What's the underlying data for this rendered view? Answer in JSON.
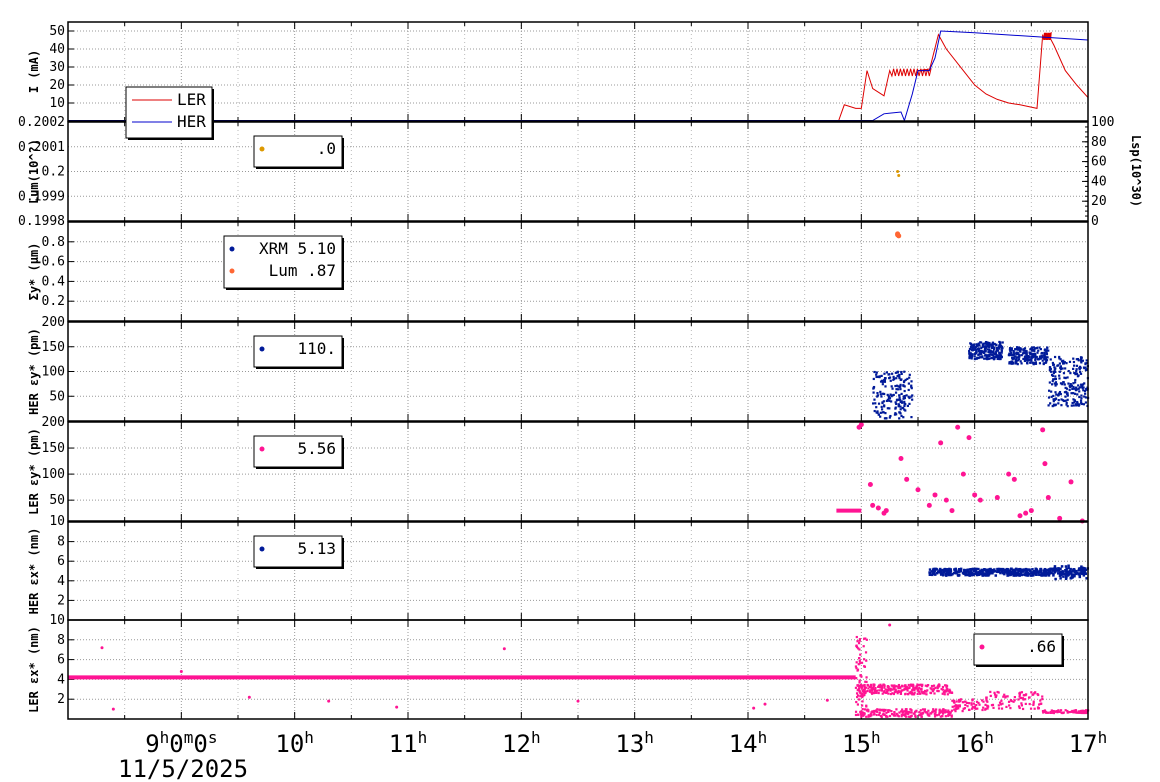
{
  "chart_data": [
    {
      "type": "line",
      "ylabel": "I (mA)",
      "yticks": [
        "10",
        "20",
        "30",
        "40",
        "50"
      ],
      "ylim": [
        0,
        55
      ],
      "grid": true,
      "legend": "top-left",
      "series": [
        {
          "name": "LER",
          "color": "#dd0000",
          "points": [
            [
              8.0,
              0.3
            ],
            [
              14.8,
              0.3
            ],
            [
              14.85,
              9
            ],
            [
              14.95,
              7
            ],
            [
              15.0,
              7
            ],
            [
              15.05,
              28
            ],
            [
              15.1,
              18
            ],
            [
              15.2,
              14
            ],
            [
              15.25,
              28
            ],
            [
              15.5,
              28
            ],
            [
              15.6,
              28
            ],
            [
              15.68,
              48
            ],
            [
              15.75,
              40
            ],
            [
              15.9,
              28
            ],
            [
              16.0,
              20
            ],
            [
              16.1,
              15
            ],
            [
              16.2,
              12
            ],
            [
              16.3,
              10
            ],
            [
              16.4,
              9
            ],
            [
              16.55,
              7
            ],
            [
              16.6,
              48
            ],
            [
              16.65,
              48
            ],
            [
              16.7,
              42
            ],
            [
              16.8,
              28
            ],
            [
              16.9,
              20
            ],
            [
              17.0,
              13
            ]
          ]
        },
        {
          "name": "HER",
          "color": "#0000cc",
          "points": [
            [
              8.0,
              0.3
            ],
            [
              15.1,
              0.3
            ],
            [
              15.2,
              4
            ],
            [
              15.35,
              5
            ],
            [
              15.38,
              0.3
            ],
            [
              15.45,
              15
            ],
            [
              15.5,
              28
            ],
            [
              15.6,
              28
            ],
            [
              15.65,
              35
            ],
            [
              15.7,
              50
            ],
            [
              16.0,
              49
            ],
            [
              16.5,
              47
            ],
            [
              17.0,
              45
            ]
          ]
        }
      ]
    },
    {
      "type": "scatter",
      "ylabel": "Lum(10^?)",
      "yticks": [
        "0.1998",
        "0.1999",
        "0.2",
        "0.2001",
        "0.2002"
      ],
      "y2label": "Lsp(10^30)",
      "y2ticks": [
        "0",
        "20",
        "40",
        "60",
        "80",
        "100"
      ],
      "legend_values": [
        ".0"
      ],
      "marker_color": "#dd9900",
      "points": [
        [
          15.32,
          0.5
        ],
        [
          15.33,
          0.46
        ]
      ]
    },
    {
      "type": "scatter",
      "ylabel": "Σy* (μm)",
      "yticks": [
        "0.2",
        "0.4",
        "0.6",
        "0.8"
      ],
      "ylim": [
        0,
        1
      ],
      "series": [
        {
          "name": "XRM",
          "value": "5.10",
          "color": "#001a99",
          "points": []
        },
        {
          "name": "Lum",
          "value": ".87",
          "color": "#ff6633",
          "points": [
            [
              15.32,
              0.88
            ],
            [
              15.32,
              0.87
            ],
            [
              15.33,
              0.86
            ]
          ]
        }
      ]
    },
    {
      "type": "scatter",
      "ylabel": "HER εy* (pm)",
      "yticks": [
        "50",
        "100",
        "150",
        "200"
      ],
      "ylim": [
        0,
        200
      ],
      "legend_values": [
        "110."
      ],
      "marker_color": "#001a99",
      "clusters": [
        {
          "x": [
            15.1,
            15.45
          ],
          "y": [
            5,
            100
          ],
          "n": 180
        },
        {
          "x": [
            15.95,
            16.25
          ],
          "y": [
            125,
            160
          ],
          "n": 220
        },
        {
          "x": [
            16.3,
            16.65
          ],
          "y": [
            115,
            150
          ],
          "n": 200
        },
        {
          "x": [
            16.65,
            17.0
          ],
          "y": [
            30,
            130
          ],
          "n": 220
        }
      ]
    },
    {
      "type": "scatter",
      "ylabel": "LER εy* (pm)",
      "yticks": [
        "10",
        "50",
        "100",
        "150",
        "200"
      ],
      "ylim": [
        10,
        200
      ],
      "legend_values": [
        "5.56"
      ],
      "marker_color": "#ff1493",
      "lines": [
        [
          14.78,
          15.0,
          30
        ]
      ],
      "points": [
        [
          14.98,
          190
        ],
        [
          15.0,
          195
        ],
        [
          15.08,
          80
        ],
        [
          15.1,
          40
        ],
        [
          15.15,
          35
        ],
        [
          15.2,
          25
        ],
        [
          15.22,
          30
        ],
        [
          15.35,
          130
        ],
        [
          15.4,
          90
        ],
        [
          15.5,
          70
        ],
        [
          15.6,
          40
        ],
        [
          15.65,
          60
        ],
        [
          15.7,
          160
        ],
        [
          15.75,
          50
        ],
        [
          15.8,
          30
        ],
        [
          15.85,
          190
        ],
        [
          15.9,
          100
        ],
        [
          15.95,
          170
        ],
        [
          16.0,
          60
        ],
        [
          16.05,
          50
        ],
        [
          16.2,
          55
        ],
        [
          16.3,
          100
        ],
        [
          16.35,
          90
        ],
        [
          16.4,
          20
        ],
        [
          16.45,
          25
        ],
        [
          16.5,
          30
        ],
        [
          16.6,
          185
        ],
        [
          16.62,
          120
        ],
        [
          16.65,
          55
        ],
        [
          16.75,
          15
        ],
        [
          16.85,
          85
        ],
        [
          16.95,
          10
        ]
      ]
    },
    {
      "type": "scatter",
      "ylabel": "HER εx* (nm)",
      "yticks": [
        "2",
        "4",
        "6",
        "8"
      ],
      "ylim": [
        0,
        10
      ],
      "legend_values": [
        "5.13"
      ],
      "marker_color": "#001a99",
      "band": [
        15.6,
        17.0,
        4.9,
        0.35
      ]
    },
    {
      "type": "scatter",
      "ylabel": "LER εx* (nm)",
      "yticks": [
        "2",
        "4",
        "6",
        "8",
        "10"
      ],
      "ylim": [
        0,
        10
      ],
      "legend_values": [
        ".66"
      ],
      "marker_color": "#ff1493",
      "lines": [
        [
          8.0,
          14.95,
          4.2
        ]
      ],
      "points": [
        [
          8.3,
          7.2
        ],
        [
          8.4,
          1
        ],
        [
          9.0,
          4.8
        ],
        [
          9.6,
          2.2
        ],
        [
          10.3,
          1.8
        ],
        [
          10.9,
          1.2
        ],
        [
          11.85,
          7.1
        ],
        [
          12.5,
          1.8
        ],
        [
          14.05,
          1.1
        ],
        [
          14.15,
          1.5
        ],
        [
          14.7,
          1.9
        ],
        [
          15.25,
          9.5
        ]
      ],
      "clusters": [
        {
          "x": [
            14.95,
            15.8
          ],
          "y": [
            2.5,
            3.5
          ],
          "n": 260
        },
        {
          "x": [
            14.95,
            15.8
          ],
          "y": [
            0.2,
            1.0
          ],
          "n": 200
        },
        {
          "x": [
            14.95,
            15.05
          ],
          "y": [
            1,
            8.5
          ],
          "n": 60
        },
        {
          "x": [
            15.8,
            16.1
          ],
          "y": [
            0.8,
            2.0
          ],
          "n": 60
        },
        {
          "x": [
            16.1,
            16.6
          ],
          "y": [
            1.0,
            2.8
          ],
          "n": 90
        },
        {
          "x": [
            16.6,
            17.0
          ],
          "y": [
            0.6,
            0.9
          ],
          "n": 80
        }
      ]
    }
  ],
  "xaxis": {
    "range": [
      8.0,
      17.0
    ],
    "ticks": [
      {
        "x": 9,
        "main": "9",
        "sup1": "h",
        "mid": "0",
        "sup2": "m",
        "mid2": "0",
        "sup3": "s"
      },
      {
        "x": 10,
        "main": "10",
        "sup1": "h"
      },
      {
        "x": 11,
        "main": "11",
        "sup1": "h"
      },
      {
        "x": 12,
        "main": "12",
        "sup1": "h"
      },
      {
        "x": 13,
        "main": "13",
        "sup1": "h"
      },
      {
        "x": 14,
        "main": "14",
        "sup1": "h"
      },
      {
        "x": 15,
        "main": "15",
        "sup1": "h"
      },
      {
        "x": 16,
        "main": "16",
        "sup1": "h"
      },
      {
        "x": 17,
        "main": "17",
        "sup1": "h"
      }
    ],
    "date": "11/5/2025"
  }
}
